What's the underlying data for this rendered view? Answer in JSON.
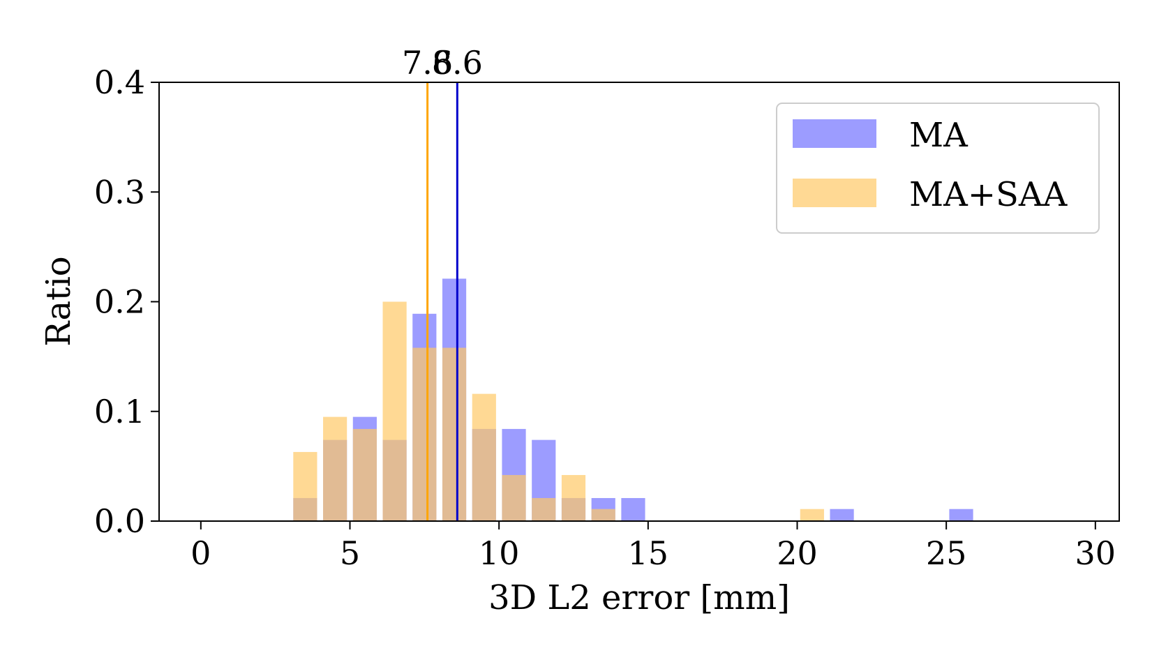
{
  "chart_data": {
    "type": "bar",
    "title": "",
    "xlabel": "3D L2 error [mm]",
    "ylabel": "Ratio",
    "xlim": [
      -1.4,
      30.8
    ],
    "ylim": [
      0,
      0.4
    ],
    "xticks": [
      0,
      5,
      10,
      15,
      20,
      25,
      30
    ],
    "yticks": [
      0.0,
      0.1,
      0.2,
      0.3,
      0.4
    ],
    "xtick_labels": [
      "0",
      "5",
      "10",
      "15",
      "20",
      "25",
      "30"
    ],
    "ytick_labels": [
      "0.0",
      "0.1",
      "0.2",
      "0.3",
      "0.4"
    ],
    "bar_width": 0.8,
    "grid": false,
    "legend_position": "top-right",
    "series": [
      {
        "name": "MA",
        "color": "#8080ff",
        "opacity": 0.78,
        "x": [
          3.5,
          4.5,
          5.5,
          6.5,
          7.5,
          8.5,
          9.5,
          10.5,
          11.5,
          12.5,
          13.5,
          14.5,
          21.5,
          25.5
        ],
        "values": [
          0.021,
          0.074,
          0.095,
          0.074,
          0.189,
          0.221,
          0.084,
          0.084,
          0.074,
          0.021,
          0.021,
          0.021,
          0.011,
          0.011
        ]
      },
      {
        "name": "MA+SAA",
        "color": "#ffc966",
        "opacity": 0.7,
        "x": [
          3.5,
          4.5,
          5.5,
          6.5,
          7.5,
          8.5,
          9.5,
          10.5,
          11.5,
          12.5,
          13.5,
          20.5
        ],
        "values": [
          0.063,
          0.095,
          0.084,
          0.2,
          0.158,
          0.158,
          0.116,
          0.042,
          0.021,
          0.042,
          0.011,
          0.011
        ]
      }
    ],
    "mean_lines": [
      {
        "value": 7.6,
        "label": "7.6",
        "color": "#ffa500"
      },
      {
        "value": 8.6,
        "label": "8.6",
        "color": "#0000cc"
      }
    ]
  }
}
